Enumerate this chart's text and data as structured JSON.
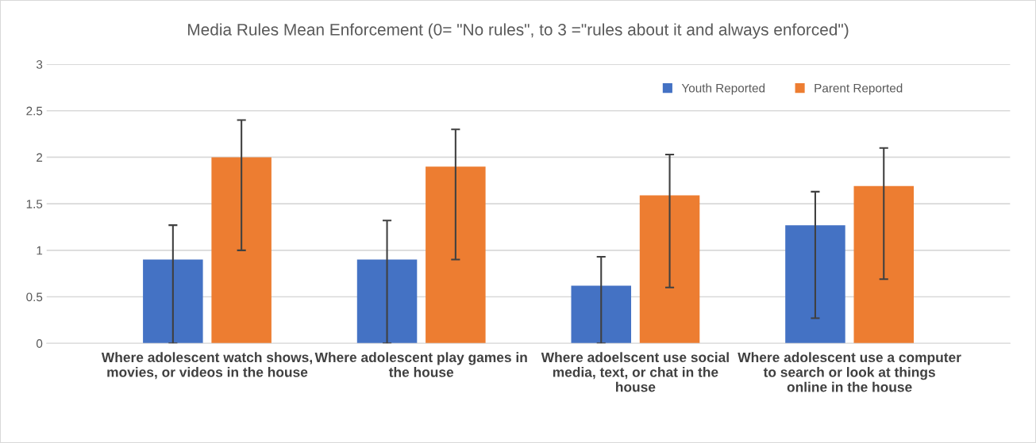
{
  "chart_data": {
    "type": "bar",
    "title": "Media Rules Mean Enforcement (0= \"No rules\", to 3 =\"rules about it and always enforced\")",
    "categories": [
      "Where adolescent watch shows, movies, or videos in the house",
      "Where adolescent play games in the house",
      "Where adoelscent use social media, text, or chat in the house",
      "Where adolescent use a computer to search or look at things online in the house"
    ],
    "series": [
      {
        "name": "Youth Reported",
        "color": "#4472c4",
        "values": [
          0.9,
          0.9,
          0.62,
          1.27
        ],
        "errors": [
          [
            0,
            1.27
          ],
          [
            0,
            1.32
          ],
          [
            0,
            0.93
          ],
          [
            0.27,
            1.63
          ]
        ]
      },
      {
        "name": "Parent Reported",
        "color": "#ed7d31",
        "values": [
          2.0,
          1.9,
          1.59,
          1.69
        ],
        "errors": [
          [
            1.0,
            2.4
          ],
          [
            0.9,
            2.3
          ],
          [
            0.6,
            2.03
          ],
          [
            0.69,
            2.1
          ]
        ]
      }
    ],
    "ylim": [
      0,
      3
    ],
    "yticks": [
      0,
      0.5,
      1,
      1.5,
      2,
      2.5,
      3
    ],
    "grid": "y",
    "legend": "top right"
  }
}
